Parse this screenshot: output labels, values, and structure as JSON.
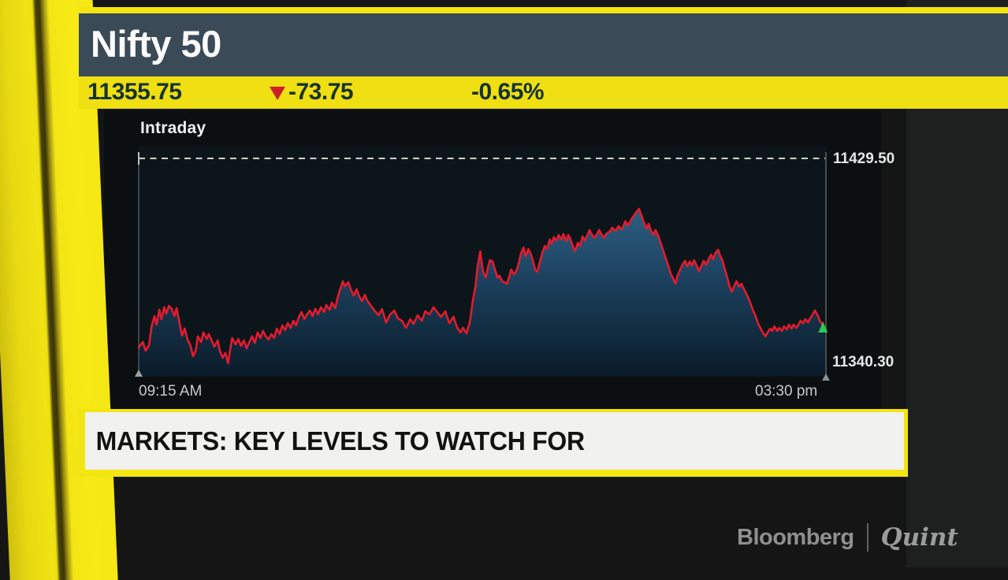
{
  "header": {
    "title": "Nifty 50",
    "last": "11355.75",
    "change": "-73.75",
    "change_pct": "-0.65%",
    "direction": "down"
  },
  "chart": {
    "label": "Intraday",
    "high_line_label": "11429.50",
    "low_label": "11340.30",
    "x_start_label": "09:15 AM",
    "x_end_label": "03:30 pm"
  },
  "chart_data": {
    "type": "area",
    "title": "Intraday",
    "series_name": "Nifty 50",
    "x_axis": {
      "start": "09:15 AM",
      "end": "03:30 pm"
    },
    "y_reference_line": 11429.5,
    "y_low_label": 11340.3,
    "last_price": 11355.75,
    "legend": "none",
    "grid": "single dashed reference line at 11429.50",
    "points": [
      [
        0.0,
        11347.2
      ],
      [
        0.006,
        11349.6
      ],
      [
        0.01,
        11345.8
      ],
      [
        0.015,
        11348.2
      ],
      [
        0.019,
        11356.8
      ],
      [
        0.023,
        11360.9
      ],
      [
        0.026,
        11357.1
      ],
      [
        0.03,
        11363.6
      ],
      [
        0.033,
        11359.5
      ],
      [
        0.037,
        11364.7
      ],
      [
        0.04,
        11361.9
      ],
      [
        0.044,
        11365.3
      ],
      [
        0.048,
        11364.0
      ],
      [
        0.052,
        11360.9
      ],
      [
        0.055,
        11364.3
      ],
      [
        0.058,
        11359.9
      ],
      [
        0.063,
        11352.3
      ],
      [
        0.067,
        11355.4
      ],
      [
        0.071,
        11350.6
      ],
      [
        0.075,
        11348.2
      ],
      [
        0.079,
        11343.4
      ],
      [
        0.083,
        11345.8
      ],
      [
        0.086,
        11352.0
      ],
      [
        0.091,
        11349.6
      ],
      [
        0.094,
        11353.7
      ],
      [
        0.099,
        11350.9
      ],
      [
        0.102,
        11353.0
      ],
      [
        0.107,
        11349.6
      ],
      [
        0.11,
        11347.5
      ],
      [
        0.115,
        11350.2
      ],
      [
        0.118,
        11345.8
      ],
      [
        0.122,
        11342.7
      ],
      [
        0.126,
        11344.8
      ],
      [
        0.13,
        11340.3
      ],
      [
        0.133,
        11346.1
      ],
      [
        0.136,
        11351.3
      ],
      [
        0.141,
        11348.5
      ],
      [
        0.145,
        11350.9
      ],
      [
        0.149,
        11347.8
      ],
      [
        0.153,
        11350.2
      ],
      [
        0.157,
        11346.8
      ],
      [
        0.161,
        11349.6
      ],
      [
        0.165,
        11352.0
      ],
      [
        0.169,
        11349.2
      ],
      [
        0.173,
        11353.7
      ],
      [
        0.177,
        11351.3
      ],
      [
        0.181,
        11354.4
      ],
      [
        0.185,
        11352.0
      ],
      [
        0.189,
        11350.6
      ],
      [
        0.193,
        11353.0
      ],
      [
        0.197,
        11351.3
      ],
      [
        0.201,
        11355.4
      ],
      [
        0.205,
        11353.0
      ],
      [
        0.209,
        11356.8
      ],
      [
        0.213,
        11354.7
      ],
      [
        0.217,
        11357.8
      ],
      [
        0.221,
        11355.7
      ],
      [
        0.225,
        11358.8
      ],
      [
        0.229,
        11356.8
      ],
      [
        0.233,
        11360.5
      ],
      [
        0.237,
        11362.6
      ],
      [
        0.241,
        11359.5
      ],
      [
        0.245,
        11361.6
      ],
      [
        0.249,
        11363.3
      ],
      [
        0.253,
        11360.9
      ],
      [
        0.257,
        11364.0
      ],
      [
        0.261,
        11361.6
      ],
      [
        0.265,
        11364.7
      ],
      [
        0.27,
        11362.6
      ],
      [
        0.273,
        11365.7
      ],
      [
        0.278,
        11363.6
      ],
      [
        0.281,
        11366.7
      ],
      [
        0.286,
        11364.3
      ],
      [
        0.289,
        11368.4
      ],
      [
        0.292,
        11371.5
      ],
      [
        0.297,
        11376.0
      ],
      [
        0.3,
        11373.9
      ],
      [
        0.305,
        11375.6
      ],
      [
        0.309,
        11372.2
      ],
      [
        0.313,
        11369.8
      ],
      [
        0.317,
        11372.5
      ],
      [
        0.321,
        11369.4
      ],
      [
        0.325,
        11367.4
      ],
      [
        0.329,
        11370.1
      ],
      [
        0.333,
        11367.4
      ],
      [
        0.337,
        11365.7
      ],
      [
        0.343,
        11363.3
      ],
      [
        0.349,
        11361.2
      ],
      [
        0.354,
        11363.9
      ],
      [
        0.36,
        11358.1
      ],
      [
        0.366,
        11361.6
      ],
      [
        0.372,
        11363.3
      ],
      [
        0.377,
        11359.9
      ],
      [
        0.383,
        11358.8
      ],
      [
        0.389,
        11355.7
      ],
      [
        0.395,
        11359.5
      ],
      [
        0.4,
        11357.5
      ],
      [
        0.406,
        11361.2
      ],
      [
        0.412,
        11358.8
      ],
      [
        0.417,
        11362.9
      ],
      [
        0.423,
        11361.6
      ],
      [
        0.429,
        11364.7
      ],
      [
        0.435,
        11362.3
      ],
      [
        0.44,
        11360.5
      ],
      [
        0.446,
        11362.9
      ],
      [
        0.452,
        11357.8
      ],
      [
        0.458,
        11360.5
      ],
      [
        0.463,
        11356.1
      ],
      [
        0.468,
        11353.7
      ],
      [
        0.472,
        11355.7
      ],
      [
        0.477,
        11353.3
      ],
      [
        0.482,
        11358.5
      ],
      [
        0.486,
        11367.4
      ],
      [
        0.49,
        11373.9
      ],
      [
        0.493,
        11382.2
      ],
      [
        0.497,
        11389.0
      ],
      [
        0.499,
        11384.6
      ],
      [
        0.501,
        11380.1
      ],
      [
        0.505,
        11377.7
      ],
      [
        0.508,
        11381.8
      ],
      [
        0.511,
        11385.2
      ],
      [
        0.515,
        11384.6
      ],
      [
        0.518,
        11381.5
      ],
      [
        0.522,
        11377.7
      ],
      [
        0.525,
        11378.4
      ],
      [
        0.529,
        11376.0
      ],
      [
        0.532,
        11375.6
      ],
      [
        0.536,
        11374.9
      ],
      [
        0.539,
        11378.0
      ],
      [
        0.542,
        11381.1
      ],
      [
        0.546,
        11379.1
      ],
      [
        0.549,
        11380.1
      ],
      [
        0.553,
        11383.9
      ],
      [
        0.556,
        11388.0
      ],
      [
        0.56,
        11390.7
      ],
      [
        0.563,
        11386.9
      ],
      [
        0.567,
        11390.0
      ],
      [
        0.57,
        11388.3
      ],
      [
        0.573,
        11385.6
      ],
      [
        0.577,
        11381.1
      ],
      [
        0.58,
        11380.1
      ],
      [
        0.584,
        11384.6
      ],
      [
        0.587,
        11388.3
      ],
      [
        0.591,
        11391.4
      ],
      [
        0.594,
        11390.0
      ],
      [
        0.598,
        11394.2
      ],
      [
        0.601,
        11392.4
      ],
      [
        0.604,
        11395.2
      ],
      [
        0.608,
        11393.8
      ],
      [
        0.611,
        11396.2
      ],
      [
        0.615,
        11394.2
      ],
      [
        0.618,
        11396.6
      ],
      [
        0.622,
        11393.5
      ],
      [
        0.625,
        11396.2
      ],
      [
        0.628,
        11394.5
      ],
      [
        0.632,
        11391.1
      ],
      [
        0.635,
        11389.0
      ],
      [
        0.639,
        11392.8
      ],
      [
        0.642,
        11391.4
      ],
      [
        0.646,
        11395.5
      ],
      [
        0.649,
        11393.8
      ],
      [
        0.653,
        11396.2
      ],
      [
        0.656,
        11398.3
      ],
      [
        0.659,
        11396.6
      ],
      [
        0.663,
        11394.9
      ],
      [
        0.666,
        11396.2
      ],
      [
        0.67,
        11398.3
      ],
      [
        0.673,
        11396.6
      ],
      [
        0.677,
        11394.9
      ],
      [
        0.68,
        11396.6
      ],
      [
        0.685,
        11397.6
      ],
      [
        0.689,
        11399.3
      ],
      [
        0.694,
        11397.9
      ],
      [
        0.698,
        11400.0
      ],
      [
        0.703,
        11398.6
      ],
      [
        0.708,
        11402.1
      ],
      [
        0.712,
        11400.3
      ],
      [
        0.717,
        11403.1
      ],
      [
        0.721,
        11404.8
      ],
      [
        0.725,
        11406.5
      ],
      [
        0.728,
        11407.5
      ],
      [
        0.732,
        11404.4
      ],
      [
        0.735,
        11401.7
      ],
      [
        0.739,
        11398.9
      ],
      [
        0.742,
        11401.0
      ],
      [
        0.745,
        11398.3
      ],
      [
        0.749,
        11396.2
      ],
      [
        0.752,
        11398.3
      ],
      [
        0.756,
        11395.9
      ],
      [
        0.759,
        11393.1
      ],
      [
        0.763,
        11389.7
      ],
      [
        0.767,
        11385.9
      ],
      [
        0.771,
        11382.5
      ],
      [
        0.774,
        11379.4
      ],
      [
        0.778,
        11377.0
      ],
      [
        0.781,
        11374.9
      ],
      [
        0.784,
        11378.4
      ],
      [
        0.788,
        11381.1
      ],
      [
        0.791,
        11383.2
      ],
      [
        0.795,
        11384.9
      ],
      [
        0.798,
        11382.5
      ],
      [
        0.802,
        11384.6
      ],
      [
        0.805,
        11382.9
      ],
      [
        0.808,
        11385.2
      ],
      [
        0.812,
        11382.9
      ],
      [
        0.815,
        11380.4
      ],
      [
        0.819,
        11382.9
      ],
      [
        0.822,
        11384.9
      ],
      [
        0.826,
        11383.2
      ],
      [
        0.829,
        11385.6
      ],
      [
        0.833,
        11387.6
      ],
      [
        0.836,
        11385.6
      ],
      [
        0.839,
        11388.3
      ],
      [
        0.843,
        11389.7
      ],
      [
        0.846,
        11387.3
      ],
      [
        0.85,
        11384.6
      ],
      [
        0.853,
        11381.1
      ],
      [
        0.857,
        11377.0
      ],
      [
        0.86,
        11373.6
      ],
      [
        0.863,
        11371.5
      ],
      [
        0.867,
        11374.3
      ],
      [
        0.87,
        11376.0
      ],
      [
        0.874,
        11373.6
      ],
      [
        0.877,
        11374.9
      ],
      [
        0.881,
        11372.5
      ],
      [
        0.884,
        11370.8
      ],
      [
        0.888,
        11368.1
      ],
      [
        0.891,
        11365.7
      ],
      [
        0.894,
        11363.3
      ],
      [
        0.898,
        11360.5
      ],
      [
        0.901,
        11357.8
      ],
      [
        0.905,
        11355.4
      ],
      [
        0.908,
        11353.7
      ],
      [
        0.912,
        11352.0
      ],
      [
        0.915,
        11353.7
      ],
      [
        0.919,
        11355.4
      ],
      [
        0.922,
        11354.4
      ],
      [
        0.925,
        11356.4
      ],
      [
        0.929,
        11354.4
      ],
      [
        0.932,
        11355.7
      ],
      [
        0.936,
        11354.4
      ],
      [
        0.939,
        11356.4
      ],
      [
        0.943,
        11355.0
      ],
      [
        0.946,
        11357.1
      ],
      [
        0.95,
        11355.4
      ],
      [
        0.953,
        11357.1
      ],
      [
        0.957,
        11355.7
      ],
      [
        0.96,
        11357.1
      ],
      [
        0.963,
        11358.8
      ],
      [
        0.967,
        11357.8
      ],
      [
        0.97,
        11359.5
      ],
      [
        0.974,
        11358.1
      ],
      [
        0.977,
        11359.9
      ],
      [
        0.981,
        11361.6
      ],
      [
        0.984,
        11363.3
      ],
      [
        0.988,
        11361.2
      ],
      [
        0.991,
        11358.8
      ],
      [
        0.995,
        11357.1
      ],
      [
        0.998,
        11355.75
      ]
    ]
  },
  "banner": {
    "headline": "MARKETS: KEY LEVELS TO WATCH FOR"
  },
  "branding": {
    "bloomberg": "Bloomberg",
    "quint": "Quint"
  },
  "colors": {
    "yellow": "#f3e512",
    "slate_header": "#3b4a57",
    "quote_text": "#16332e",
    "red_line": "#e51a2d",
    "down_arrow_red": "#cc2026",
    "green_marker": "#2fc653",
    "area_top": "#2d5f83",
    "area_bottom": "#0a1b28",
    "plot_bg": "#0c161a",
    "dashed_line": "#ccd2d2"
  }
}
